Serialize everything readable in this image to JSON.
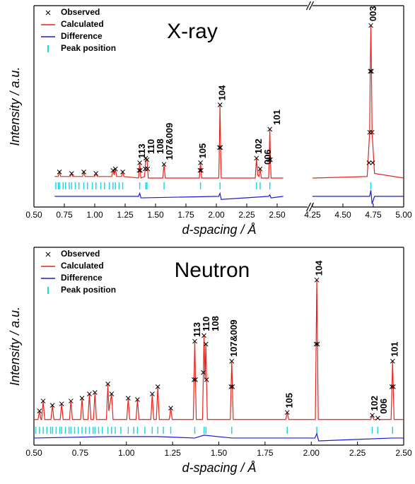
{
  "chart_data": [
    {
      "type": "line",
      "title": "X-ray",
      "xlabel": "d-spacing / Å",
      "ylabel": "Intensity / a.u.",
      "legend": "upper left",
      "ylim": [
        -19,
        113
      ],
      "x_segments": [
        {
          "xlim": [
            0.5,
            2.75
          ],
          "xticks": [
            {
              "value": 0.5,
              "label": "0.50"
            },
            0.75,
            {
              "value": 1,
              "label": "1.00"
            },
            1.25,
            {
              "value": 1.5,
              "label": "1.50"
            },
            1.75,
            {
              "value": 2,
              "label": "2.00"
            },
            2.25,
            {
              "value": 2.5,
              "label": "2.50"
            }
          ]
        },
        {
          "xlim": [
            4.25,
            5.0
          ],
          "xticks": [
            4.25,
            {
              "value": 4.5,
              "label": "4.50"
            },
            4.75,
            {
              "value": 5,
              "label": "5.00"
            }
          ]
        }
      ],
      "series": [
        {
          "name": "Observed",
          "kind": "markers",
          "color": "#000000",
          "x": [
            0.71,
            0.81,
            0.91,
            1.01,
            1.15,
            1.17,
            1.23,
            1.365,
            1.37,
            1.375,
            1.415,
            1.42,
            1.43,
            1.435,
            1.57,
            1.865,
            1.87,
            1.875,
            2.025,
            2.03,
            2.035,
            2.33,
            2.36,
            2.435,
            2.44,
            2.445,
            4.715,
            4.72,
            4.725,
            4.73,
            4.735,
            4.74,
            4.745
          ],
          "values": [
            4,
            3,
            4,
            3,
            5,
            6,
            4,
            5,
            10,
            5,
            6,
            13,
            12,
            6,
            9,
            5,
            10,
            5,
            20,
            48,
            20,
            13,
            6,
            12,
            32,
            12,
            10,
            30,
            70,
            100,
            70,
            30,
            10
          ]
        },
        {
          "name": "Calculated",
          "kind": "line",
          "color": "#e8231c",
          "x": [
            0.67,
            0.7,
            0.71,
            0.72,
            0.8,
            0.81,
            0.82,
            0.9,
            0.91,
            0.92,
            1.0,
            1.01,
            1.02,
            1.14,
            1.15,
            1.16,
            1.17,
            1.18,
            1.22,
            1.23,
            1.24,
            1.36,
            1.37,
            1.38,
            1.41,
            1.42,
            1.43,
            1.44,
            1.56,
            1.57,
            1.58,
            1.86,
            1.87,
            1.88,
            2.02,
            2.025,
            2.03,
            2.035,
            2.04,
            2.32,
            2.33,
            2.34,
            2.35,
            2.36,
            2.37,
            2.43,
            2.435,
            2.44,
            2.445,
            2.45,
            2.55,
            3.5,
            4.25,
            4.7,
            4.72,
            4.725,
            4.73,
            4.735,
            4.74,
            4.76,
            5.0
          ],
          "values": [
            1,
            1,
            4,
            1,
            1,
            3,
            1,
            1,
            4,
            1,
            1,
            3,
            1,
            1,
            5,
            2,
            6,
            1,
            1,
            4,
            1,
            0,
            10,
            0,
            1,
            13,
            12,
            0,
            0,
            9,
            0,
            0,
            10,
            0,
            0,
            20,
            48,
            20,
            0,
            0,
            13,
            2,
            1,
            6,
            0,
            0,
            12,
            32,
            12,
            0,
            0,
            null,
            0,
            1,
            30,
            70,
            100,
            70,
            30,
            3,
            0
          ]
        },
        {
          "name": "Difference",
          "kind": "line",
          "color": "#1a1adb",
          "x": [
            0.67,
            1.36,
            1.37,
            1.38,
            2.02,
            2.03,
            2.04,
            2.43,
            2.44,
            2.45,
            2.55,
            3.5,
            4.25,
            4.72,
            4.73,
            4.74,
            4.76,
            5.0
          ],
          "values": [
            -12,
            -12,
            -10,
            -13,
            -12,
            -10,
            -14,
            -12,
            -11,
            -13,
            -12,
            null,
            -12,
            -12,
            -8,
            -17,
            -12,
            -12
          ]
        },
        {
          "name": "Peak position",
          "kind": "ticks",
          "color": "#21d4e8",
          "x": [
            0.68,
            0.7,
            0.71,
            0.74,
            0.76,
            0.79,
            0.81,
            0.84,
            0.87,
            0.91,
            0.94,
            0.98,
            1.01,
            1.05,
            1.08,
            1.12,
            1.15,
            1.17,
            1.2,
            1.23,
            1.37,
            1.42,
            1.43,
            1.57,
            1.87,
            2.03,
            2.33,
            2.36,
            2.44,
            4.73
          ]
        }
      ],
      "annotations": [
        {
          "text": "113",
          "x": 1.37
        },
        {
          "text": "110",
          "x": 1.415
        },
        {
          "text": "108",
          "x": 1.43
        },
        {
          "text": "107&009",
          "x": 1.57
        },
        {
          "text": "105",
          "x": 1.87
        },
        {
          "text": "104",
          "x": 2.03
        },
        {
          "text": "102",
          "x": 2.33
        },
        {
          "text": "006",
          "x": 2.36
        },
        {
          "text": "101",
          "x": 2.44
        },
        {
          "text": "003",
          "x": 4.73
        }
      ]
    },
    {
      "type": "line",
      "title": "Neutron",
      "xlabel": "d-spacing / Å",
      "ylabel": "Intensity / a.u.",
      "legend": "upper left",
      "ylim": [
        -16,
        123
      ],
      "x_segments": [
        {
          "xlim": [
            0.5,
            2.5
          ],
          "xticks": [
            {
              "value": 0.5,
              "label": "0.50"
            },
            0.75,
            {
              "value": 1,
              "label": "1.00"
            },
            1.25,
            {
              "value": 1.5,
              "label": "1.50"
            },
            1.75,
            {
              "value": 2,
              "label": "2.00"
            },
            2.25,
            {
              "value": 2.5,
              "label": "2.50"
            }
          ]
        }
      ],
      "series": [
        {
          "name": "Observed",
          "kind": "markers",
          "color": "#000000",
          "x": [
            0.53,
            0.55,
            0.6,
            0.65,
            0.7,
            0.76,
            0.8,
            0.83,
            0.9,
            0.92,
            1.01,
            1.06,
            1.14,
            1.17,
            1.24,
            1.366,
            1.37,
            1.374,
            1.416,
            1.42,
            1.43,
            1.434,
            1.566,
            1.57,
            1.574,
            1.87,
            2.026,
            2.03,
            2.034,
            2.33,
            2.36,
            2.436,
            2.44,
            2.444
          ],
          "values": [
            8,
            15,
            12,
            13,
            15,
            17,
            20,
            21,
            27,
            20,
            17,
            16,
            20,
            25,
            10,
            30,
            57,
            30,
            35,
            61,
            55,
            30,
            25,
            43,
            25,
            7,
            55,
            100,
            55,
            5,
            3,
            25,
            43,
            25
          ]
        },
        {
          "name": "Calculated",
          "kind": "line",
          "color": "#e8231c",
          "x": [
            0.5,
            0.522,
            0.53,
            0.538,
            0.542,
            0.55,
            0.558,
            0.592,
            0.6,
            0.608,
            0.642,
            0.65,
            0.658,
            0.692,
            0.7,
            0.708,
            0.752,
            0.76,
            0.768,
            0.792,
            0.8,
            0.808,
            0.822,
            0.83,
            0.838,
            0.892,
            0.9,
            0.905,
            0.92,
            0.928,
            1.002,
            1.01,
            1.018,
            1.052,
            1.06,
            1.068,
            1.132,
            1.14,
            1.148,
            1.162,
            1.17,
            1.178,
            1.232,
            1.24,
            1.248,
            1.362,
            1.37,
            1.378,
            1.412,
            1.42,
            1.425,
            1.43,
            1.438,
            1.562,
            1.57,
            1.578,
            1.862,
            1.87,
            1.878,
            2.022,
            2.03,
            2.038,
            2.322,
            2.33,
            2.338,
            2.352,
            2.36,
            2.368,
            2.432,
            2.44,
            2.448,
            2.5
          ],
          "values": [
            2,
            2,
            8,
            2,
            2,
            15,
            2,
            2,
            12,
            2,
            2,
            13,
            2,
            2,
            15,
            2,
            2,
            17,
            2,
            2,
            20,
            2,
            2,
            21,
            2,
            2,
            27,
            8,
            20,
            2,
            2,
            17,
            2,
            2,
            16,
            2,
            2,
            20,
            2,
            2,
            25,
            2,
            2,
            10,
            2,
            2,
            57,
            2,
            2,
            61,
            30,
            55,
            2,
            2,
            43,
            2,
            2,
            7,
            2,
            2,
            100,
            2,
            2,
            5,
            2,
            2,
            3,
            2,
            2,
            43,
            2,
            2
          ]
        },
        {
          "name": "Difference",
          "kind": "line",
          "color": "#1a1adb",
          "x": [
            0.5,
            0.9,
            1.17,
            1.37,
            1.42,
            1.57,
            2.02,
            2.03,
            2.04,
            2.44,
            2.5
          ],
          "values": [
            -11,
            -10,
            -10,
            -11,
            -9,
            -11,
            -11,
            -8,
            -13,
            -11,
            -11
          ]
        },
        {
          "name": "Peak position",
          "kind": "ticks",
          "color": "#21d4e8",
          "x": [
            0.51,
            0.53,
            0.55,
            0.57,
            0.59,
            0.6,
            0.62,
            0.64,
            0.65,
            0.67,
            0.69,
            0.7,
            0.72,
            0.74,
            0.76,
            0.78,
            0.8,
            0.82,
            0.83,
            0.85,
            0.87,
            0.9,
            0.92,
            0.94,
            0.97,
            1.01,
            1.04,
            1.06,
            1.1,
            1.14,
            1.17,
            1.2,
            1.24,
            1.37,
            1.42,
            1.43,
            1.57,
            1.87,
            2.03,
            2.33,
            2.36,
            2.44
          ]
        }
      ],
      "annotations": [
        {
          "text": "113",
          "x": 1.37
        },
        {
          "text": "110",
          "x": 1.415
        },
        {
          "text": "108",
          "x": 1.43
        },
        {
          "text": "107&009",
          "x": 1.57
        },
        {
          "text": "105",
          "x": 1.87
        },
        {
          "text": "104",
          "x": 2.03
        },
        {
          "text": "102",
          "x": 2.33
        },
        {
          "text": "006",
          "x": 2.36
        },
        {
          "text": "101",
          "x": 2.44
        }
      ]
    }
  ]
}
